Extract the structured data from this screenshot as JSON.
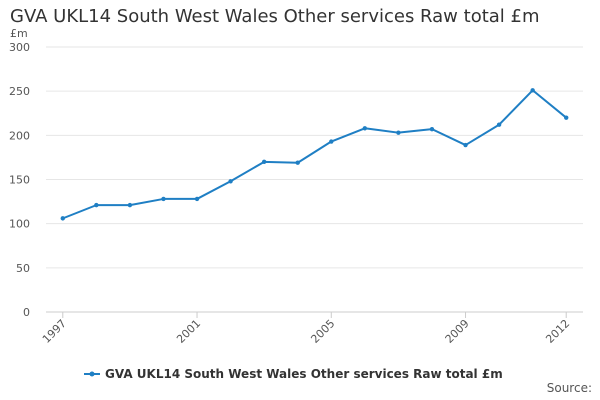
{
  "title": "GVA UKL14 South West Wales Other services Raw total £m",
  "source_label": "Source:",
  "chart_data": {
    "type": "line",
    "title": "GVA UKL14 South West Wales Other services Raw total £m",
    "ylabel": "£m",
    "xlabel": "",
    "ylim": [
      0,
      300
    ],
    "yticks": [
      0,
      50,
      100,
      150,
      200,
      250,
      300
    ],
    "xlim": [
      1997,
      2012
    ],
    "xticks": [
      "1997",
      "2001",
      "2005",
      "2009",
      "2012"
    ],
    "grid": true,
    "legend_position": "bottom",
    "color": "#1f7fc4",
    "series": [
      {
        "name": "GVA UKL14 South West Wales Other services Raw total £m",
        "x": [
          1997,
          1998,
          1999,
          2000,
          2001,
          2002,
          2003,
          2004,
          2005,
          2006,
          2007,
          2008,
          2009,
          2010,
          2011,
          2012
        ],
        "values": [
          106,
          121,
          121,
          128,
          128,
          148,
          170,
          169,
          193,
          208,
          203,
          207,
          189,
          212,
          251,
          220
        ]
      }
    ]
  }
}
